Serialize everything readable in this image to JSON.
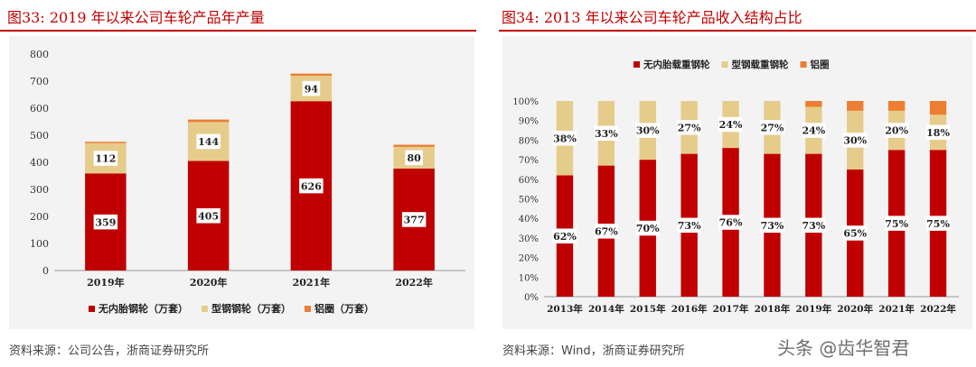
{
  "left": {
    "title": "图33:  2019 年以来公司车轮产品年产量",
    "source": "资料来源：公司公告，浙商证券研究所",
    "chart_data": {
      "type": "bar",
      "stacked": true,
      "categories": [
        "2019年",
        "2020年",
        "2021年",
        "2022年"
      ],
      "series": [
        {
          "name": "无内胎钢轮（万套）",
          "values": [
            359,
            405,
            626,
            377
          ],
          "labels": [
            "359",
            "405",
            "626",
            "377"
          ],
          "color": "#c00000"
        },
        {
          "name": "型钢钢轮（万套）",
          "values": [
            112,
            144,
            94,
            80
          ],
          "labels": [
            "112",
            "144",
            "94",
            "80"
          ],
          "color": "#e6cc8a"
        },
        {
          "name": "铝圈（万套）",
          "values": [
            5,
            9,
            8,
            8
          ],
          "labels": [
            "",
            "",
            "",
            ""
          ],
          "color": "#ed7d31"
        }
      ],
      "yticks": [
        "0",
        "100",
        "200",
        "300",
        "400",
        "500",
        "600",
        "700",
        "800"
      ],
      "ylim": [
        0,
        800
      ],
      "legend": "bottom"
    }
  },
  "right": {
    "title": "图34:  2013 年以来公司车轮产品收入结构占比",
    "source": "资料来源：Wind，浙商证券研究所",
    "chart_data": {
      "type": "bar",
      "stacked": true,
      "categories": [
        "2013年",
        "2014年",
        "2015年",
        "2016年",
        "2017年",
        "2018年",
        "2019年",
        "2020年",
        "2021年",
        "2022年"
      ],
      "series": [
        {
          "name": "无内胎载重钢轮",
          "values": [
            62,
            67,
            70,
            73,
            76,
            73,
            73,
            65,
            75,
            75
          ],
          "labels": [
            "62%",
            "67%",
            "70%",
            "73%",
            "76%",
            "73%",
            "73%",
            "65%",
            "75%",
            "75%"
          ],
          "color": "#c00000"
        },
        {
          "name": "型钢载重钢轮",
          "values": [
            38,
            33,
            30,
            27,
            24,
            27,
            24,
            30,
            20,
            18
          ],
          "labels": [
            "38%",
            "33%",
            "30%",
            "27%",
            "24%",
            "27%",
            "24%",
            "30%",
            "20%",
            "18%"
          ],
          "color": "#e6cc8a"
        },
        {
          "name": "铝圈",
          "values": [
            0,
            0,
            0,
            0,
            0,
            0,
            3,
            5,
            5,
            7
          ],
          "labels": [
            "",
            "",
            "",
            "",
            "",
            "",
            "",
            "",
            "",
            ""
          ],
          "color": "#ed7d31"
        }
      ],
      "yticks": [
        "0%",
        "10%",
        "20%",
        "30%",
        "40%",
        "50%",
        "60%",
        "70%",
        "80%",
        "90%",
        "100%"
      ],
      "ylim": [
        0,
        100
      ],
      "legend": "top"
    }
  },
  "watermark": "头条 @齿华智君"
}
